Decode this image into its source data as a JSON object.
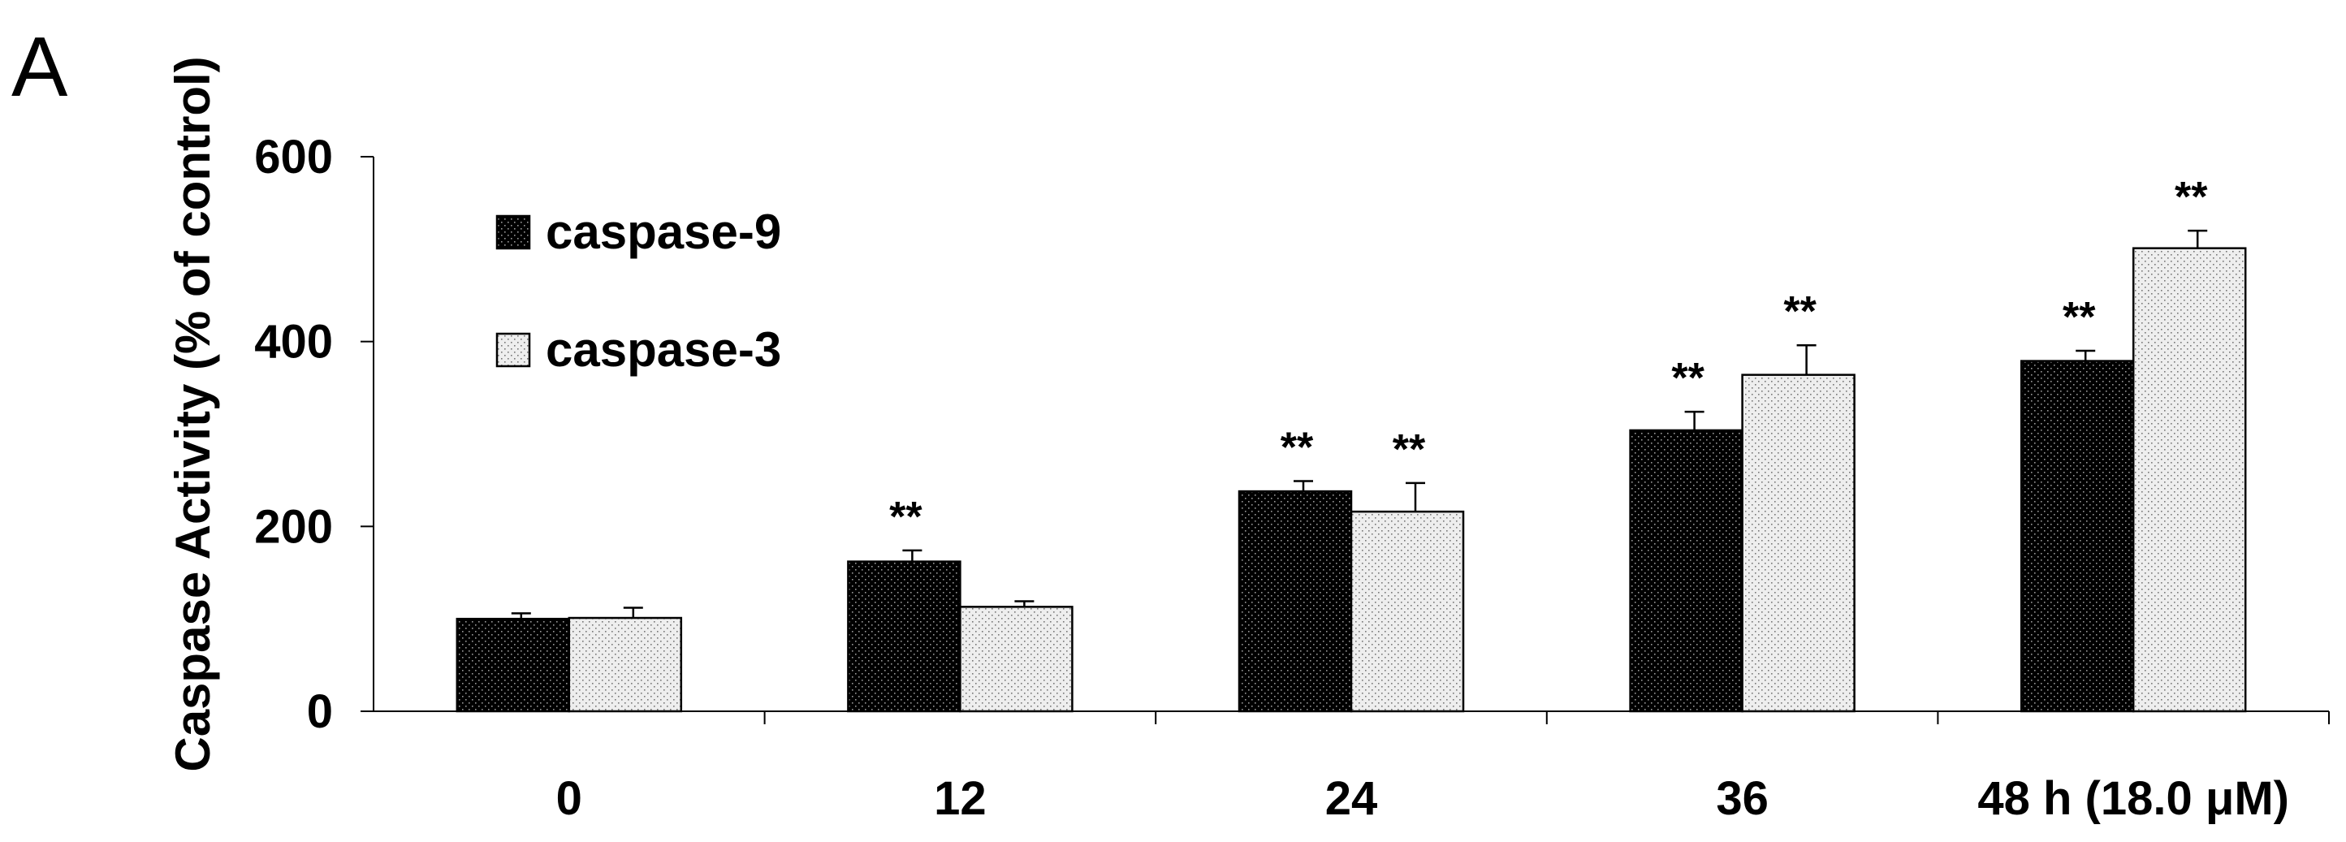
{
  "panel_label": "A",
  "chart_data": {
    "type": "bar",
    "title": "",
    "xlabel": "",
    "ylabel": "Caspase Activity (% of control)",
    "categories": [
      "0",
      "12",
      "24",
      "36",
      "48 h (18.0 μM)"
    ],
    "ylim": [
      0,
      600
    ],
    "yticks": [
      "0",
      "200",
      "400",
      "600"
    ],
    "series": [
      {
        "name": "caspase-9",
        "values": [
          100,
          162,
          238,
          304,
          379
        ],
        "errors": [
          6,
          12,
          11,
          20,
          11
        ],
        "significance": [
          "",
          "**",
          "**",
          "**",
          "**"
        ]
      },
      {
        "name": "caspase-3",
        "values": [
          101,
          113,
          216,
          364,
          501
        ],
        "errors": [
          11,
          6,
          31,
          32,
          19
        ],
        "significance": [
          "",
          "",
          "**",
          "**",
          "**"
        ]
      }
    ],
    "legend_position": "top-left",
    "grid": false
  }
}
